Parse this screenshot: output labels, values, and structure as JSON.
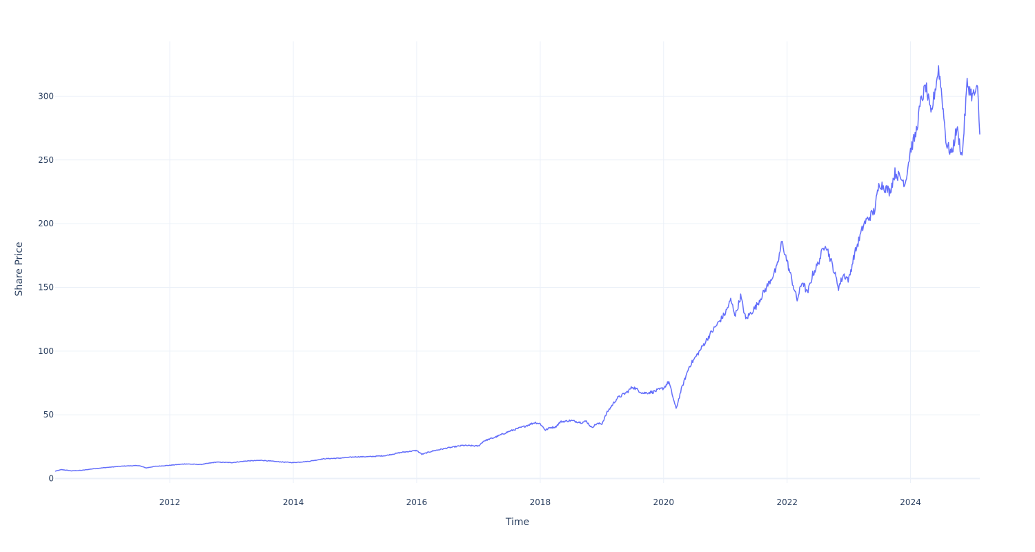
{
  "chart_data": {
    "type": "line",
    "title": "",
    "xlabel": "Time",
    "ylabel": "Share Price",
    "x_range": [
      "2010-02-22",
      "2025-02-14"
    ],
    "y_range": [
      -3.5,
      343
    ],
    "x_ticks": [
      "2012",
      "2014",
      "2016",
      "2018",
      "2020",
      "2022",
      "2024"
    ],
    "y_ticks": [
      0,
      50,
      100,
      150,
      200,
      250,
      300
    ],
    "grid": true,
    "line_color": "#636efa",
    "grid_color": "#ebf0f8",
    "text_color": "#2a3f5f",
    "series": [
      {
        "x": [
          "2010-02-22",
          "2010-04-01",
          "2010-06-01",
          "2010-08-01",
          "2010-10-01",
          "2011-01-01",
          "2011-04-01",
          "2011-07-01",
          "2011-08-15",
          "2011-10-01",
          "2012-01-01",
          "2012-04-01",
          "2012-07-01",
          "2012-10-01",
          "2013-01-01",
          "2013-04-01",
          "2013-07-01",
          "2013-10-01",
          "2014-01-01",
          "2014-04-01",
          "2014-07-01",
          "2014-10-01",
          "2015-01-01",
          "2015-04-01",
          "2015-07-01",
          "2015-10-01",
          "2016-01-01",
          "2016-02-01",
          "2016-04-01",
          "2016-07-01",
          "2016-10-01",
          "2017-01-01",
          "2017-02-01",
          "2017-04-01",
          "2017-07-01",
          "2017-10-01",
          "2017-12-01",
          "2018-01-01",
          "2018-02-01",
          "2018-03-01",
          "2018-04-01",
          "2018-05-01",
          "2018-07-01",
          "2018-09-01",
          "2018-10-01",
          "2018-11-01",
          "2018-12-01",
          "2019-01-01",
          "2019-02-01",
          "2019-04-01",
          "2019-06-01",
          "2019-07-01",
          "2019-09-01",
          "2019-11-01",
          "2020-01-01",
          "2020-02-01",
          "2020-03-15",
          "2020-04-15",
          "2020-06-01",
          "2020-08-01",
          "2020-10-01",
          "2021-01-01",
          "2021-02-01",
          "2021-03-01",
          "2021-04-01",
          "2021-05-01",
          "2021-07-01",
          "2021-09-01",
          "2021-11-01",
          "2021-12-01",
          "2022-01-01",
          "2022-03-01",
          "2022-04-01",
          "2022-05-01",
          "2022-06-01",
          "2022-07-01",
          "2022-08-15",
          "2022-10-01",
          "2022-11-01",
          "2022-12-01",
          "2023-01-01",
          "2023-02-01",
          "2023-04-01",
          "2023-06-01",
          "2023-07-01",
          "2023-09-01",
          "2023-10-01",
          "2023-12-01",
          "2024-01-01",
          "2024-02-01",
          "2024-03-01",
          "2024-04-01",
          "2024-05-01",
          "2024-06-15",
          "2024-07-01",
          "2024-08-01",
          "2024-09-01",
          "2024-10-01",
          "2024-11-01",
          "2024-12-01",
          "2025-01-01",
          "2025-02-01",
          "2025-02-14"
        ],
        "y": [
          5.8,
          7.0,
          6.0,
          6.5,
          7.6,
          8.8,
          9.8,
          10.2,
          8.3,
          9.5,
          10.4,
          11.5,
          11.0,
          12.9,
          12.5,
          13.8,
          14.3,
          13.2,
          12.5,
          13.5,
          15.5,
          16.0,
          17.0,
          17.2,
          18.0,
          20.5,
          22.0,
          19.0,
          21.5,
          24.0,
          26.0,
          25.5,
          29.5,
          32.0,
          37.0,
          41.0,
          44.0,
          43.0,
          38.0,
          40.0,
          40.5,
          44.5,
          45.5,
          44.0,
          45.0,
          40.0,
          43.0,
          43.0,
          52.0,
          63.0,
          68.0,
          72.0,
          67.0,
          68.0,
          71.0,
          76.0,
          54.5,
          70.0,
          88.0,
          100.0,
          113.0,
          130.0,
          140.0,
          128.0,
          143.0,
          125.0,
          135.0,
          150.0,
          165.0,
          186.0,
          170.0,
          140.0,
          155.0,
          145.0,
          160.0,
          168.0,
          185.0,
          165.0,
          150.0,
          160.0,
          156.0,
          175.0,
          200.0,
          210.0,
          232.0,
          225.0,
          240.0,
          232.0,
          258.0,
          270.0,
          295.0,
          308.0,
          285.0,
          322.0,
          305.0,
          262.0,
          255.0,
          275.0,
          252.0,
          310.0,
          300.0,
          305.0,
          270.0
        ]
      }
    ]
  }
}
